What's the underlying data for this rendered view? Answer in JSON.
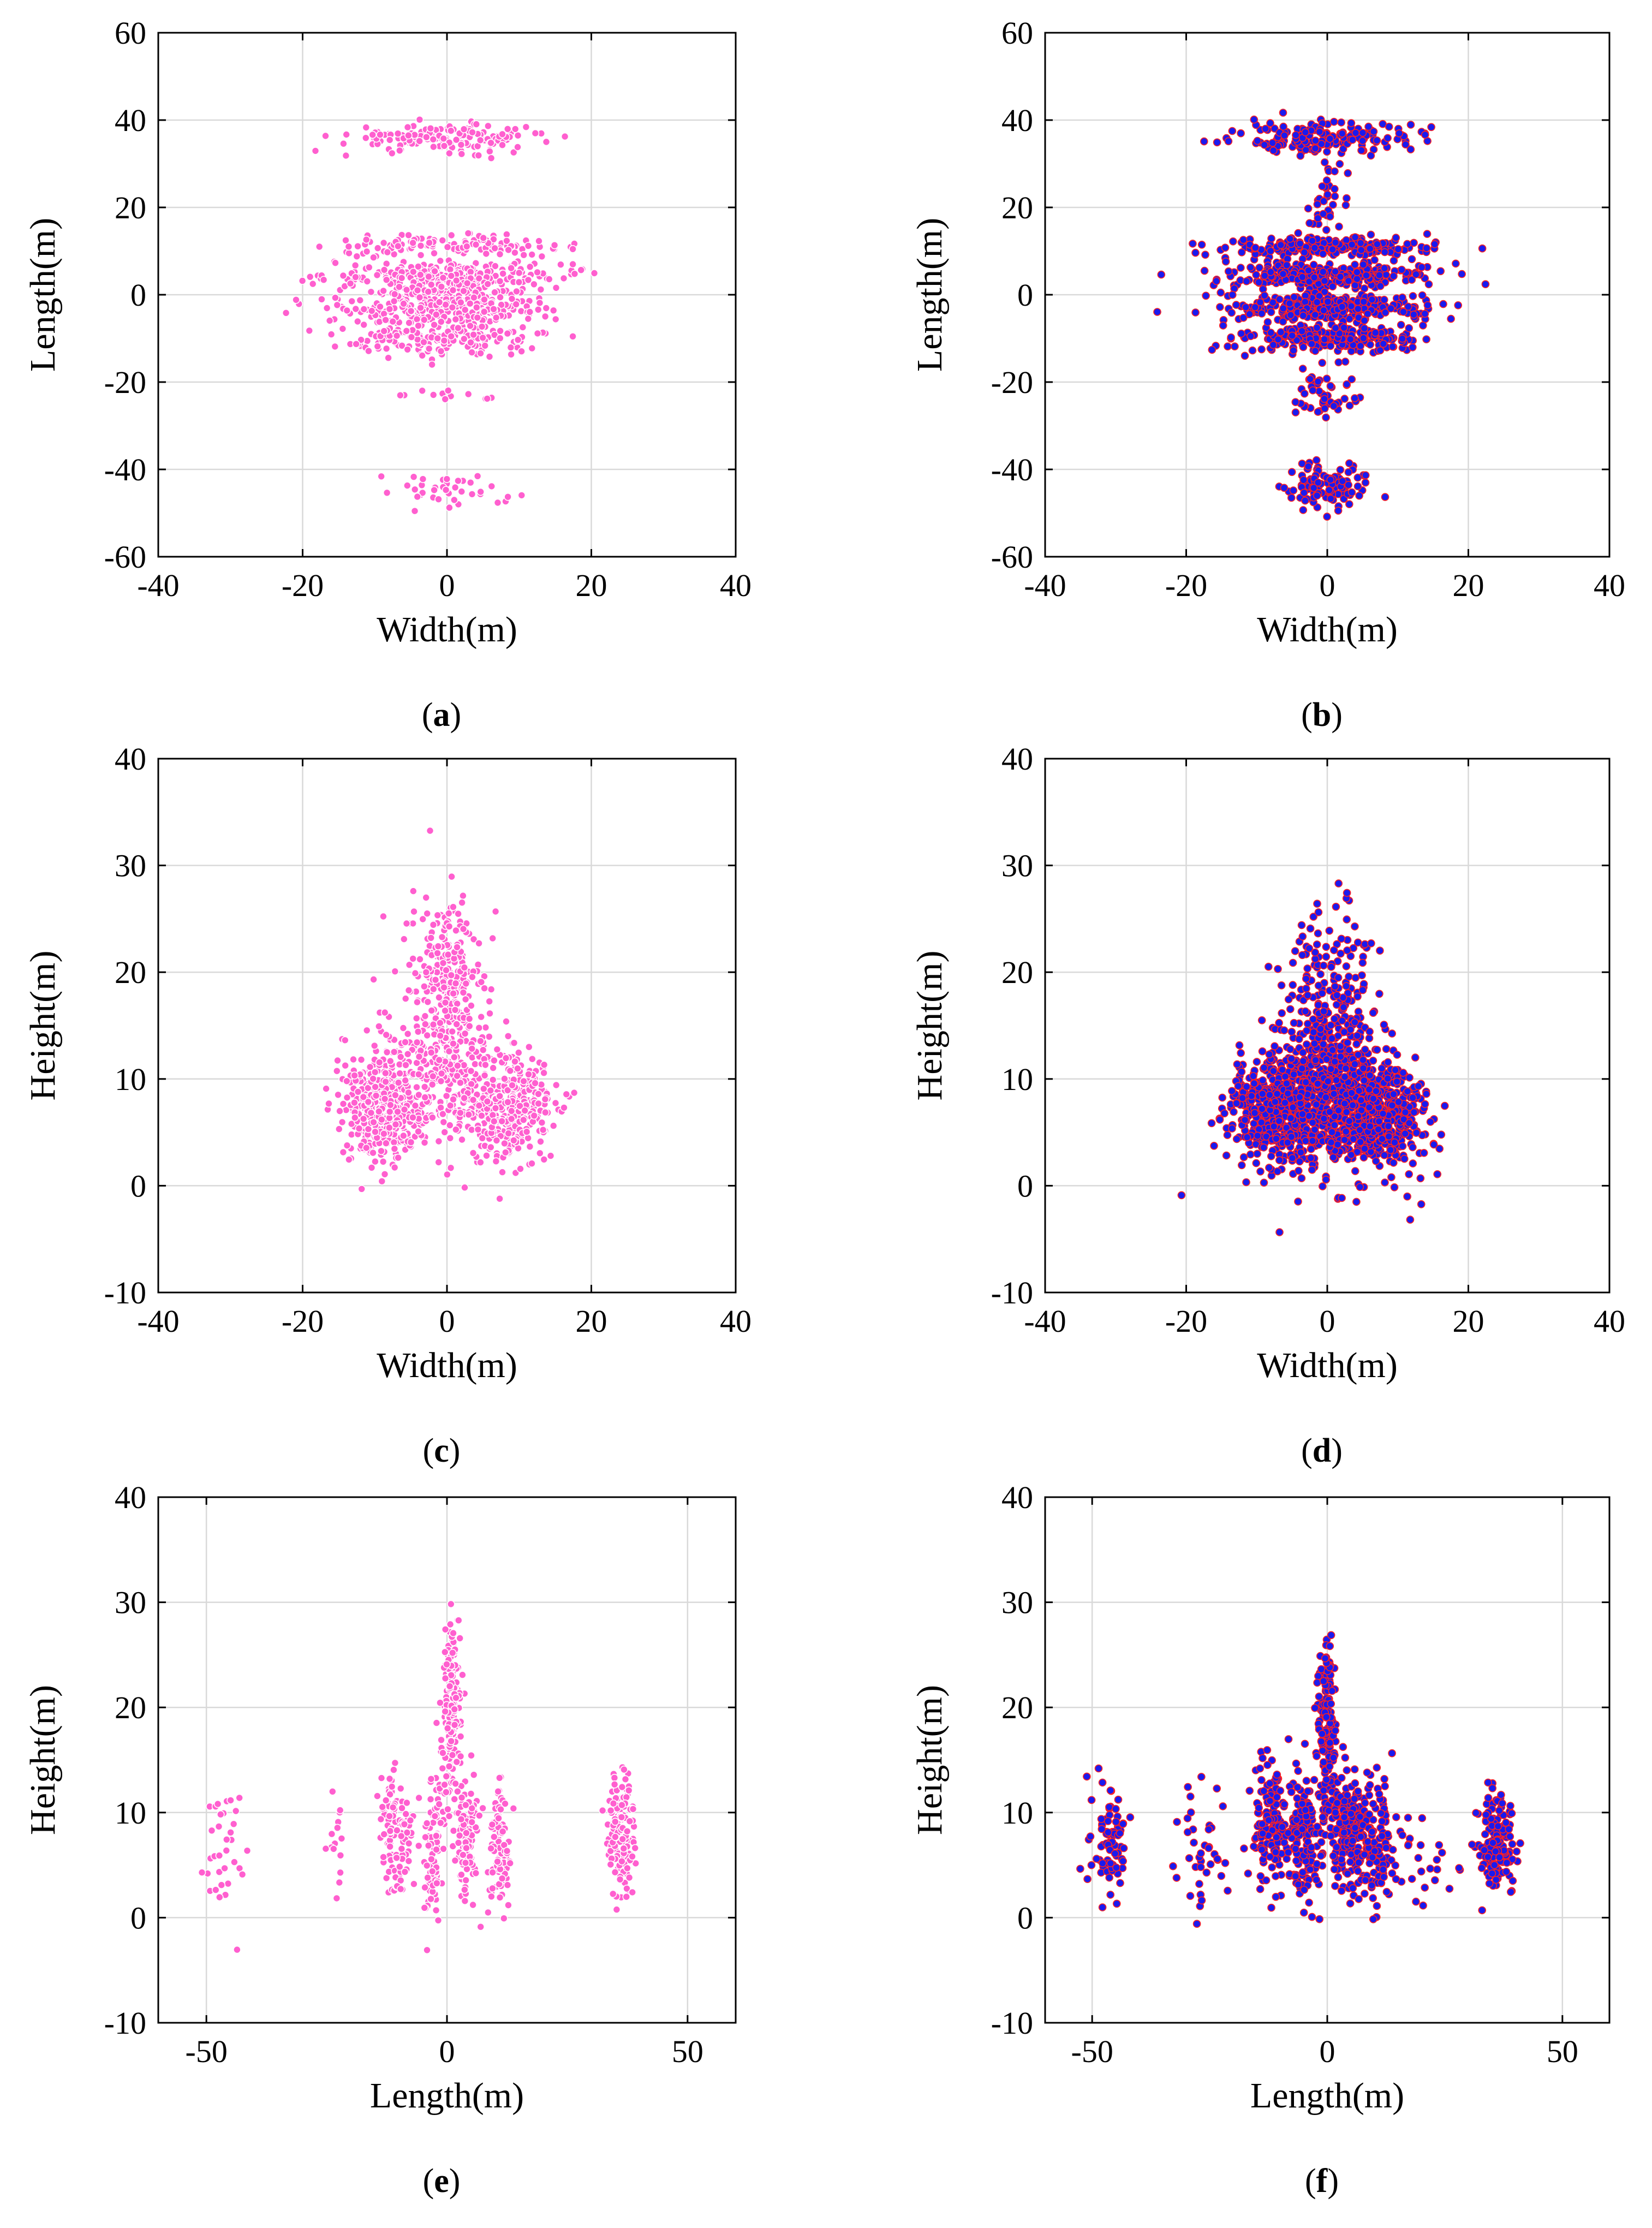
{
  "figure": {
    "panels": [
      {
        "id": "a",
        "caption_open": "(",
        "caption_letter": "a",
        "caption_close": ")",
        "color": "#ff5fcf",
        "edge_color": "#ffffff",
        "xlabel": "Width(m)",
        "ylabel": "Length(m)",
        "xlim": [
          -40,
          40
        ],
        "ylim": [
          -60,
          60
        ],
        "xticks": [
          -40,
          -20,
          0,
          20,
          40
        ],
        "yticks": [
          -60,
          -40,
          -20,
          0,
          20,
          40,
          60
        ],
        "xtick_labels": [
          "-40",
          "-20",
          "0",
          "20",
          "40"
        ],
        "ytick_labels": [
          "-60",
          "-40",
          "-20",
          "0",
          "20",
          "40",
          "60"
        ]
      },
      {
        "id": "b",
        "caption_open": "(",
        "caption_letter": "b",
        "caption_close": ")",
        "color": "#1a1aee",
        "edge_color": "#ff2020",
        "xlabel": "Width(m)",
        "ylabel": "Length(m)",
        "xlim": [
          -40,
          40
        ],
        "ylim": [
          -60,
          60
        ],
        "xticks": [
          -40,
          -20,
          0,
          20,
          40
        ],
        "yticks": [
          -60,
          -40,
          -20,
          0,
          20,
          40,
          60
        ],
        "xtick_labels": [
          "-40",
          "-20",
          "0",
          "20",
          "40"
        ],
        "ytick_labels": [
          "-60",
          "-40",
          "-20",
          "0",
          "20",
          "40",
          "60"
        ]
      },
      {
        "id": "c",
        "caption_open": "(",
        "caption_letter": "c",
        "caption_close": ")",
        "color": "#ff5fcf",
        "edge_color": "#ffffff",
        "xlabel": "Width(m)",
        "ylabel": "Height(m)",
        "xlim": [
          -40,
          40
        ],
        "ylim": [
          -10,
          40
        ],
        "xticks": [
          -40,
          -20,
          0,
          20,
          40
        ],
        "yticks": [
          -10,
          0,
          10,
          20,
          30,
          40
        ],
        "xtick_labels": [
          "-40",
          "-20",
          "0",
          "20",
          "40"
        ],
        "ytick_labels": [
          "-10",
          "0",
          "10",
          "20",
          "30",
          "40"
        ]
      },
      {
        "id": "d",
        "caption_open": "(",
        "caption_letter": "d",
        "caption_close": ")",
        "color": "#1a1aee",
        "edge_color": "#ff2020",
        "xlabel": "Width(m)",
        "ylabel": "Height(m)",
        "xlim": [
          -40,
          40
        ],
        "ylim": [
          -10,
          40
        ],
        "xticks": [
          -40,
          -20,
          0,
          20,
          40
        ],
        "yticks": [
          -10,
          0,
          10,
          20,
          30,
          40
        ],
        "xtick_labels": [
          "-40",
          "-20",
          "0",
          "20",
          "40"
        ],
        "ytick_labels": [
          "-10",
          "0",
          "10",
          "20",
          "30",
          "40"
        ]
      },
      {
        "id": "e",
        "caption_open": "(",
        "caption_letter": "e",
        "caption_close": ")",
        "color": "#ff5fcf",
        "edge_color": "#ffffff",
        "xlabel": "Length(m)",
        "ylabel": "Height(m)",
        "xlim": [
          -60,
          60
        ],
        "ylim": [
          -10,
          40
        ],
        "xticks": [
          -50,
          0,
          50
        ],
        "yticks": [
          -10,
          0,
          10,
          20,
          30,
          40
        ],
        "xtick_labels": [
          "-50",
          "0",
          "50"
        ],
        "ytick_labels": [
          "-10",
          "0",
          "10",
          "20",
          "30",
          "40"
        ]
      },
      {
        "id": "f",
        "caption_open": "(",
        "caption_letter": "f",
        "caption_close": ")",
        "color": "#1a1aee",
        "edge_color": "#ff2020",
        "xlabel": "Length(m)",
        "ylabel": "Height(m)",
        "xlim": [
          -60,
          60
        ],
        "ylim": [
          -10,
          40
        ],
        "xticks": [
          -50,
          0,
          50
        ],
        "yticks": [
          -10,
          0,
          10,
          20,
          30,
          40
        ],
        "xtick_labels": [
          "-50",
          "0",
          "50"
        ],
        "ytick_labels": [
          "-10",
          "0",
          "10",
          "20",
          "30",
          "40"
        ]
      }
    ]
  },
  "chart_data": [
    {
      "panel": "a",
      "type": "scatter",
      "xlabel": "Width(m)",
      "ylabel": "Length(m)",
      "xlim": [
        -40,
        40
      ],
      "ylim": [
        -60,
        60
      ],
      "grid": true,
      "clusters": [
        {
          "cx": 0,
          "cy": 36,
          "sx": 7,
          "sy": 1.5,
          "n": 160
        },
        {
          "cx": 0,
          "cy": 11,
          "sx": 8,
          "sy": 1.2,
          "n": 130
        },
        {
          "cx": 0,
          "cy": 4.5,
          "sx": 8,
          "sy": 1.5,
          "n": 230
        },
        {
          "cx": 0,
          "cy": 0,
          "sx": 6,
          "sy": 2,
          "n": 150
        },
        {
          "cx": 0,
          "cy": -3.5,
          "sx": 7,
          "sy": 1.5,
          "n": 200
        },
        {
          "cx": 0,
          "cy": -10,
          "sx": 7,
          "sy": 2,
          "n": 180
        },
        {
          "cx": 0,
          "cy": -23,
          "sx": 3,
          "sy": 1,
          "n": 12
        },
        {
          "cx": 0,
          "cy": -45,
          "sx": 4,
          "sy": 2,
          "n": 40
        },
        {
          "cx": 18,
          "cy": 5,
          "sx": 0.5,
          "sy": 0.5,
          "n": 2
        },
        {
          "cx": -20,
          "cy": 3,
          "sx": 0.5,
          "sy": 0.5,
          "n": 1
        }
      ]
    },
    {
      "panel": "b",
      "type": "scatter",
      "xlabel": "Width(m)",
      "ylabel": "Length(m)",
      "xlim": [
        -40,
        40
      ],
      "ylim": [
        -60,
        60
      ],
      "grid": true,
      "clusters": [
        {
          "cx": 0,
          "cy": 36,
          "sx": 6,
          "sy": 1.8,
          "n": 170
        },
        {
          "cx": 0,
          "cy": 22,
          "sx": 1.5,
          "sy": 4,
          "n": 35
        },
        {
          "cx": 0,
          "cy": 11,
          "sx": 7,
          "sy": 1.2,
          "n": 230
        },
        {
          "cx": 0,
          "cy": 4.5,
          "sx": 7,
          "sy": 1.5,
          "n": 280
        },
        {
          "cx": 0,
          "cy": -3,
          "sx": 7,
          "sy": 1.5,
          "n": 280
        },
        {
          "cx": 0,
          "cy": -10,
          "sx": 6,
          "sy": 1.8,
          "n": 240
        },
        {
          "cx": 0,
          "cy": -22,
          "sx": 2.5,
          "sy": 3,
          "n": 50
        },
        {
          "cx": 0,
          "cy": -44,
          "sx": 2.8,
          "sy": 2.5,
          "n": 110
        }
      ]
    },
    {
      "panel": "c",
      "type": "scatter",
      "xlabel": "Width(m)",
      "ylabel": "Height(m)",
      "xlim": [
        -40,
        40
      ],
      "ylim": [
        -10,
        40
      ],
      "grid": true,
      "clusters": [
        {
          "cx": -9,
          "cy": 7,
          "sx": 2.8,
          "sy": 2.5,
          "n": 420
        },
        {
          "cx": 9,
          "cy": 7,
          "sx": 3,
          "sy": 2.5,
          "n": 330
        },
        {
          "cx": 0,
          "cy": 10,
          "sx": 4.5,
          "sy": 3,
          "n": 260
        },
        {
          "cx": 0,
          "cy": 20,
          "sx": 2.2,
          "sy": 3.5,
          "n": 240
        },
        {
          "cx": -3,
          "cy": 15,
          "sx": 5,
          "sy": 6,
          "n": 80
        }
      ]
    },
    {
      "panel": "d",
      "type": "scatter",
      "xlabel": "Width(m)",
      "ylabel": "Height(m)",
      "xlim": [
        -40,
        40
      ],
      "ylim": [
        -10,
        40
      ],
      "grid": true,
      "clusters": [
        {
          "cx": -7,
          "cy": 7,
          "sx": 3.5,
          "sy": 2.5,
          "n": 480
        },
        {
          "cx": 7,
          "cy": 7,
          "sx": 3.5,
          "sy": 2.5,
          "n": 480
        },
        {
          "cx": 0,
          "cy": 10,
          "sx": 4,
          "sy": 3.5,
          "n": 380
        },
        {
          "cx": 0,
          "cy": 18,
          "sx": 3,
          "sy": 4,
          "n": 170
        },
        {
          "cx": 0,
          "cy": 5,
          "sx": 8,
          "sy": 4,
          "n": 90
        }
      ]
    },
    {
      "panel": "e",
      "type": "scatter",
      "xlabel": "Length(m)",
      "ylabel": "Height(m)",
      "xlim": [
        -60,
        60
      ],
      "ylim": [
        -10,
        40
      ],
      "grid": true,
      "clusters": [
        {
          "cx": -46,
          "cy": 7,
          "sx": 2,
          "sy": 3,
          "n": 35
        },
        {
          "cx": -23,
          "cy": 7,
          "sx": 1,
          "sy": 3,
          "n": 15
        },
        {
          "cx": -12,
          "cy": 9,
          "sx": 1,
          "sy": 3,
          "n": 60
        },
        {
          "cx": -9,
          "cy": 7,
          "sx": 1.2,
          "sy": 3,
          "n": 55
        },
        {
          "cx": -3,
          "cy": 6,
          "sx": 1,
          "sy": 3.5,
          "n": 90
        },
        {
          "cx": 1,
          "cy": 20,
          "sx": 0.9,
          "sy": 4,
          "n": 210
        },
        {
          "cx": 4,
          "cy": 8,
          "sx": 1.2,
          "sy": 3,
          "n": 110
        },
        {
          "cx": 11,
          "cy": 7,
          "sx": 1.2,
          "sy": 3,
          "n": 90
        },
        {
          "cx": 36,
          "cy": 8,
          "sx": 1.5,
          "sy": 3,
          "n": 140
        }
      ]
    },
    {
      "panel": "f",
      "type": "scatter",
      "xlabel": "Length(m)",
      "ylabel": "Height(m)",
      "xlim": [
        -60,
        60
      ],
      "ylim": [
        -10,
        40
      ],
      "grid": true,
      "clusters": [
        {
          "cx": -46,
          "cy": 7,
          "sx": 2,
          "sy": 2.5,
          "n": 80
        },
        {
          "cx": -27,
          "cy": 7,
          "sx": 3,
          "sy": 3,
          "n": 40
        },
        {
          "cx": -12,
          "cy": 9,
          "sx": 2,
          "sy": 3,
          "n": 130
        },
        {
          "cx": -5,
          "cy": 8,
          "sx": 2,
          "sy": 3,
          "n": 150
        },
        {
          "cx": 0,
          "cy": 18,
          "sx": 1,
          "sy": 4.5,
          "n": 140
        },
        {
          "cx": 4,
          "cy": 8,
          "sx": 2,
          "sy": 3,
          "n": 150
        },
        {
          "cx": 10,
          "cy": 7,
          "sx": 2.5,
          "sy": 3,
          "n": 140
        },
        {
          "cx": 22,
          "cy": 5,
          "sx": 3,
          "sy": 2,
          "n": 20
        },
        {
          "cx": 36,
          "cy": 7,
          "sx": 1.8,
          "sy": 2.5,
          "n": 150
        }
      ]
    }
  ]
}
